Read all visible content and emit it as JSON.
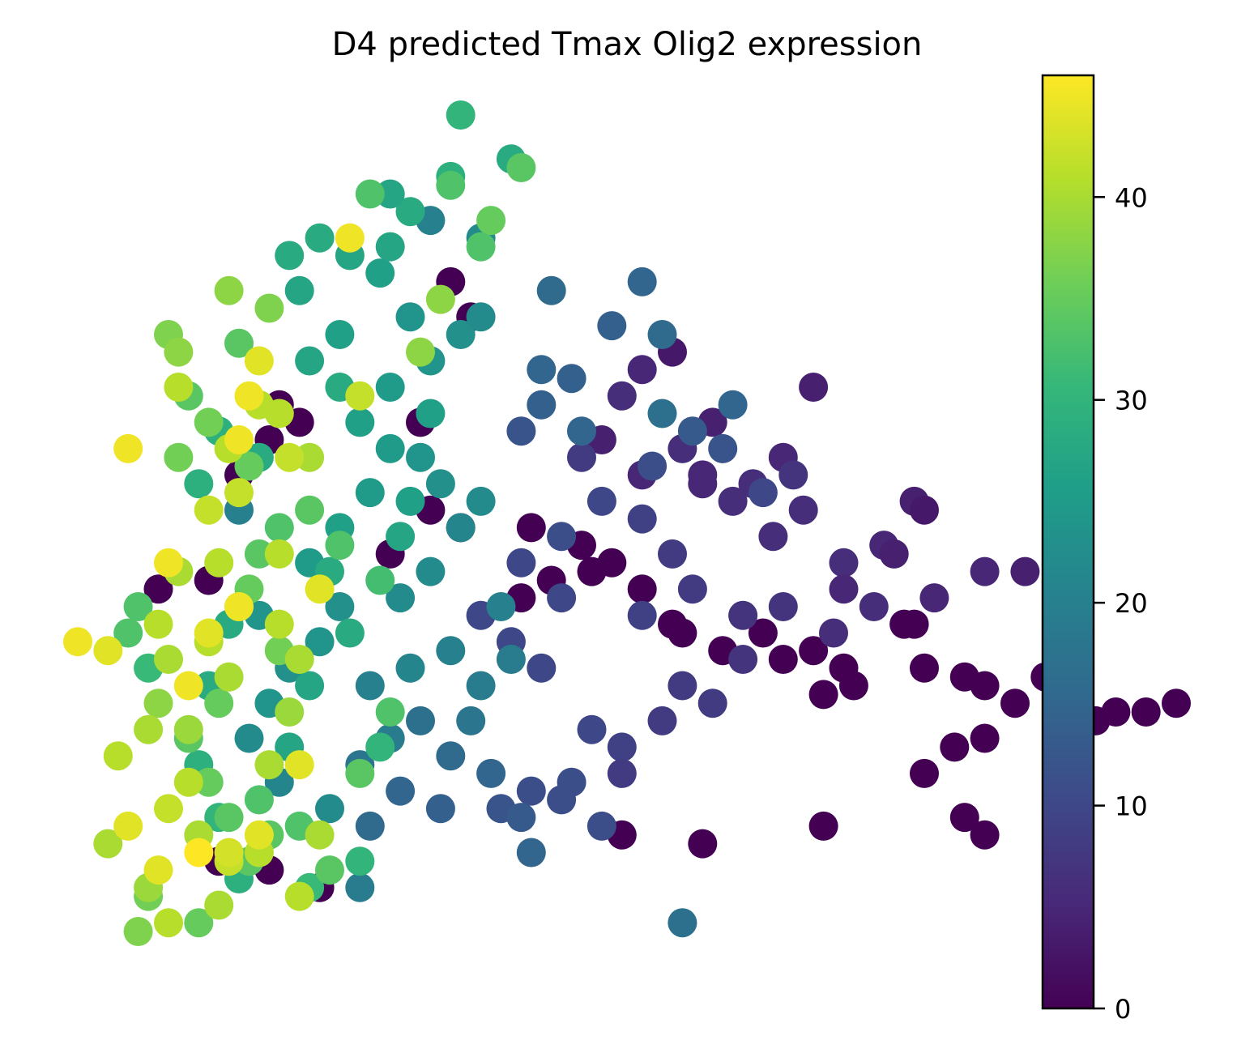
{
  "chart_data": {
    "type": "scatter",
    "title": "D4 predicted Tmax Olig2 expression",
    "xlabel": "",
    "ylabel": "",
    "axes_visible": false,
    "grid": false,
    "point_color": "viridis colormap by expression value",
    "colorbar": {
      "label": "",
      "range": [
        0,
        46
      ],
      "ticks": [
        0,
        10,
        20,
        30,
        40
      ],
      "tick_labels": [
        "0",
        "10",
        "20",
        "30",
        "40"
      ],
      "colormap": "viridis",
      "stops": [
        "#440154",
        "#482878",
        "#3e4989",
        "#31688e",
        "#26828e",
        "#1f9e89",
        "#35b779",
        "#6ece58",
        "#b5de2b",
        "#fde725"
      ]
    },
    "points": [
      [
        0.33,
        8.2,
        0
      ],
      [
        0.35,
        7.8,
        0
      ],
      [
        0.3,
        6.6,
        0
      ],
      [
        0.27,
        5.1,
        0
      ],
      [
        0.16,
        6.8,
        0
      ],
      [
        0.18,
        6.6,
        0
      ],
      [
        0.15,
        6.4,
        0
      ],
      [
        0.12,
        6.0,
        0
      ],
      [
        0.09,
        4.8,
        0
      ],
      [
        0.04,
        4.7,
        0
      ],
      [
        0.43,
        4.8,
        0
      ],
      [
        0.4,
        4.6,
        0
      ],
      [
        0.31,
        5.6,
        0
      ],
      [
        0.34,
        5.4,
        0
      ],
      [
        0.41,
        5.4,
        0
      ],
      [
        0.46,
        5.2,
        0
      ],
      [
        0.49,
        5.0,
        0
      ],
      [
        0.47,
        4.9,
        0
      ],
      [
        0.52,
        4.7,
        0
      ],
      [
        0.55,
        4.3,
        0
      ],
      [
        0.56,
        4.2,
        0
      ],
      [
        0.6,
        4.0,
        0
      ],
      [
        0.64,
        4.2,
        0
      ],
      [
        0.66,
        3.9,
        0
      ],
      [
        0.69,
        4.0,
        0
      ],
      [
        0.7,
        3.5,
        0
      ],
      [
        0.72,
        3.8,
        0
      ],
      [
        0.73,
        3.6,
        0
      ],
      [
        0.78,
        4.3,
        0
      ],
      [
        0.79,
        4.3,
        0
      ],
      [
        0.8,
        3.8,
        0
      ],
      [
        0.84,
        3.7,
        0
      ],
      [
        0.86,
        3.6,
        0
      ],
      [
        0.89,
        3.4,
        0
      ],
      [
        0.92,
        3.7,
        0
      ],
      [
        0.95,
        3.6,
        0
      ],
      [
        0.97,
        3.2,
        0
      ],
      [
        0.99,
        3.3,
        0
      ],
      [
        1.02,
        3.3,
        0
      ],
      [
        1.05,
        3.4,
        0
      ],
      [
        0.86,
        3.0,
        0
      ],
      [
        0.83,
        2.9,
        0
      ],
      [
        0.8,
        2.6,
        0
      ],
      [
        0.84,
        2.1,
        0
      ],
      [
        0.7,
        2.0,
        0
      ],
      [
        0.5,
        1.9,
        0
      ],
      [
        0.58,
        1.8,
        0
      ],
      [
        0.86,
        1.9,
        0
      ],
      [
        0.15,
        1.5,
        0
      ],
      [
        0.2,
        1.3,
        0
      ],
      [
        0.1,
        1.6,
        0
      ],
      [
        0.48,
        6.4,
        4
      ],
      [
        0.55,
        7.4,
        3
      ],
      [
        0.59,
        6.6,
        4
      ],
      [
        0.69,
        7.0,
        4
      ],
      [
        0.58,
        5.9,
        5
      ],
      [
        0.52,
        6.0,
        5
      ],
      [
        0.61,
        5.7,
        6
      ],
      [
        0.65,
        5.3,
        6
      ],
      [
        0.72,
        5.0,
        6
      ],
      [
        0.76,
        5.2,
        5
      ],
      [
        0.68,
        5.6,
        6
      ],
      [
        0.75,
        4.5,
        6
      ],
      [
        0.81,
        4.6,
        5
      ],
      [
        0.86,
        4.9,
        5
      ],
      [
        0.9,
        4.9,
        4
      ],
      [
        0.94,
        4.5,
        4
      ],
      [
        0.62,
        4.4,
        7
      ],
      [
        0.66,
        4.5,
        7
      ],
      [
        0.71,
        4.2,
        6
      ],
      [
        0.62,
        3.9,
        7
      ],
      [
        0.57,
        4.7,
        8
      ],
      [
        0.55,
        5.1,
        8
      ],
      [
        0.52,
        5.5,
        9
      ],
      [
        0.48,
        5.7,
        10
      ],
      [
        0.44,
        5.3,
        11
      ],
      [
        0.44,
        4.6,
        10
      ],
      [
        0.52,
        4.4,
        9
      ],
      [
        0.56,
        3.6,
        8
      ],
      [
        0.59,
        3.4,
        8
      ],
      [
        0.54,
        3.2,
        8
      ],
      [
        0.5,
        2.9,
        9
      ],
      [
        0.47,
        3.1,
        10
      ],
      [
        0.5,
        2.6,
        8
      ],
      [
        0.45,
        2.5,
        11
      ],
      [
        0.41,
        2.4,
        11
      ],
      [
        0.38,
        2.2,
        12
      ],
      [
        0.42,
        3.8,
        10
      ],
      [
        0.39,
        4.1,
        10
      ],
      [
        0.36,
        4.4,
        10
      ],
      [
        0.4,
        5.0,
        10
      ],
      [
        0.46,
        6.2,
        8
      ],
      [
        0.5,
        6.9,
        6
      ],
      [
        0.52,
        7.2,
        5
      ],
      [
        0.56,
        6.3,
        6
      ],
      [
        0.58,
        6.0,
        5
      ],
      [
        0.63,
        5.9,
        6
      ],
      [
        0.66,
        6.2,
        5
      ],
      [
        0.67,
        6.0,
        7
      ],
      [
        0.79,
        5.7,
        4
      ],
      [
        0.8,
        5.6,
        3
      ],
      [
        0.77,
        5.1,
        4
      ],
      [
        0.72,
        4.7,
        5
      ],
      [
        0.64,
        5.8,
        10
      ],
      [
        0.6,
        6.3,
        12
      ],
      [
        0.57,
        6.5,
        13
      ],
      [
        0.61,
        6.8,
        15
      ],
      [
        0.53,
        6.1,
        11
      ],
      [
        0.49,
        7.7,
        14
      ],
      [
        0.52,
        8.2,
        15
      ],
      [
        0.54,
        7.6,
        16
      ],
      [
        0.43,
        8.1,
        16
      ],
      [
        0.42,
        7.2,
        15
      ],
      [
        0.54,
        6.7,
        17
      ],
      [
        0.45,
        7.1,
        14
      ],
      [
        0.4,
        6.5,
        12
      ],
      [
        0.42,
        6.8,
        14
      ],
      [
        0.46,
        6.5,
        15
      ],
      [
        0.56,
        0.9,
        17
      ],
      [
        0.41,
        1.7,
        15
      ],
      [
        0.4,
        2.1,
        13
      ],
      [
        0.44,
        2.3,
        11
      ],
      [
        0.48,
        2.0,
        11
      ],
      [
        0.38,
        4.5,
        20
      ],
      [
        0.39,
        3.9,
        19
      ],
      [
        0.36,
        3.6,
        19
      ],
      [
        0.35,
        3.2,
        18
      ],
      [
        0.33,
        4.0,
        20
      ],
      [
        0.3,
        3.2,
        17
      ],
      [
        0.33,
        2.8,
        16
      ],
      [
        0.37,
        2.6,
        15
      ],
      [
        0.32,
        2.2,
        14
      ],
      [
        0.28,
        2.4,
        15
      ],
      [
        0.25,
        2.0,
        16
      ],
      [
        0.24,
        2.7,
        18
      ],
      [
        0.27,
        3.0,
        19
      ],
      [
        0.25,
        3.6,
        20
      ],
      [
        0.29,
        3.8,
        21
      ],
      [
        0.28,
        4.6,
        22
      ],
      [
        0.31,
        4.9,
        22
      ],
      [
        0.34,
        5.4,
        21
      ],
      [
        0.36,
        5.7,
        22
      ],
      [
        0.32,
        5.9,
        23
      ],
      [
        0.3,
        6.2,
        24
      ],
      [
        0.27,
        6.3,
        25
      ],
      [
        0.24,
        6.6,
        26
      ],
      [
        0.27,
        7.0,
        25
      ],
      [
        0.31,
        7.3,
        24
      ],
      [
        0.34,
        7.6,
        23
      ],
      [
        0.36,
        7.8,
        22
      ],
      [
        0.29,
        7.8,
        24
      ],
      [
        0.26,
        8.3,
        26
      ],
      [
        0.23,
        8.5,
        27
      ],
      [
        0.22,
        7.6,
        26
      ],
      [
        0.19,
        7.3,
        27
      ],
      [
        0.22,
        7.0,
        28
      ],
      [
        0.25,
        5.8,
        25
      ],
      [
        0.22,
        5.4,
        26
      ],
      [
        0.19,
        5.0,
        25
      ],
      [
        0.22,
        4.5,
        23
      ],
      [
        0.2,
        4.1,
        24
      ],
      [
        0.17,
        3.8,
        23
      ],
      [
        0.15,
        3.4,
        24
      ],
      [
        0.13,
        3.0,
        22
      ],
      [
        0.16,
        2.5,
        21
      ],
      [
        0.21,
        2.2,
        22
      ],
      [
        0.24,
        1.3,
        19
      ],
      [
        0.14,
        4.4,
        24
      ],
      [
        0.12,
        5.6,
        20
      ],
      [
        0.31,
        8.9,
        20
      ],
      [
        0.36,
        8.7,
        22
      ],
      [
        0.27,
        8.6,
        27
      ],
      [
        0.29,
        9.0,
        28
      ],
      [
        0.33,
        9.4,
        29
      ],
      [
        0.39,
        9.6,
        28
      ],
      [
        0.34,
        10.1,
        30
      ],
      [
        0.27,
        9.2,
        27
      ],
      [
        0.2,
        8.7,
        28
      ],
      [
        0.17,
        8.5,
        28
      ],
      [
        0.18,
        8.1,
        27
      ],
      [
        0.14,
        6.2,
        28
      ],
      [
        0.1,
        6.5,
        29
      ],
      [
        0.08,
        5.9,
        29
      ],
      [
        0.11,
        4.3,
        28
      ],
      [
        0.09,
        3.6,
        28
      ],
      [
        0.08,
        2.7,
        29
      ],
      [
        0.1,
        2.1,
        30
      ],
      [
        0.12,
        1.4,
        29
      ],
      [
        0.03,
        3.8,
        31
      ],
      [
        0.24,
        1.6,
        30
      ],
      [
        0.19,
        1.3,
        31
      ],
      [
        0.26,
        2.9,
        30
      ],
      [
        0.28,
        5.3,
        27
      ],
      [
        0.29,
        5.7,
        26
      ],
      [
        0.31,
        6.7,
        26
      ],
      [
        0.21,
        4.9,
        28
      ],
      [
        0.23,
        4.2,
        28
      ],
      [
        0.17,
        2.9,
        27
      ],
      [
        0.19,
        3.6,
        27
      ],
      [
        0.36,
        8.6,
        33
      ],
      [
        0.37,
        8.9,
        35
      ],
      [
        0.4,
        9.5,
        34
      ],
      [
        0.33,
        9.3,
        33
      ],
      [
        0.25,
        9.2,
        33
      ],
      [
        0.12,
        7.5,
        34
      ],
      [
        0.07,
        6.9,
        34
      ],
      [
        0.09,
        6.6,
        36
      ],
      [
        0.13,
        6.1,
        35
      ],
      [
        0.14,
        5.1,
        34
      ],
      [
        0.13,
        4.7,
        35
      ],
      [
        0.16,
        4.0,
        36
      ],
      [
        0.1,
        3.4,
        35
      ],
      [
        0.07,
        3.0,
        34
      ],
      [
        0.09,
        2.5,
        35
      ],
      [
        0.11,
        2.1,
        34
      ],
      [
        0.15,
        1.9,
        34
      ],
      [
        0.18,
        2.0,
        33
      ],
      [
        0.21,
        1.5,
        34
      ],
      [
        0.24,
        2.6,
        34
      ],
      [
        0.27,
        3.3,
        33
      ],
      [
        0.26,
        4.8,
        32
      ],
      [
        0.22,
        5.2,
        33
      ],
      [
        0.19,
        5.6,
        34
      ],
      [
        0.16,
        5.4,
        33
      ],
      [
        0.02,
        4.5,
        33
      ],
      [
        0.01,
        4.2,
        33
      ],
      [
        0.14,
        2.3,
        33
      ],
      [
        0.13,
        1.6,
        34
      ],
      [
        0.03,
        1.2,
        36
      ],
      [
        0.08,
        0.9,
        35
      ],
      [
        0.02,
        0.8,
        37
      ],
      [
        0.06,
        6.2,
        36
      ],
      [
        0.32,
        8.0,
        38
      ],
      [
        0.3,
        7.4,
        38
      ],
      [
        0.11,
        8.1,
        38
      ],
      [
        0.15,
        7.9,
        37
      ],
      [
        0.05,
        7.6,
        37
      ],
      [
        0.06,
        7.4,
        38
      ],
      [
        0.04,
        3.4,
        38
      ],
      [
        0.07,
        3.1,
        39
      ],
      [
        0.18,
        3.9,
        40
      ],
      [
        0.17,
        3.3,
        39
      ],
      [
        0.15,
        2.7,
        40
      ],
      [
        0.11,
        3.7,
        40
      ],
      [
        0.09,
        4.1,
        41
      ],
      [
        0.12,
        4.5,
        41
      ],
      [
        0.16,
        5.1,
        41
      ],
      [
        0.12,
        5.8,
        42
      ],
      [
        0.09,
        5.6,
        42
      ],
      [
        0.1,
        5.0,
        41
      ],
      [
        0.06,
        4.9,
        40
      ],
      [
        0.04,
        4.3,
        41
      ],
      [
        0.05,
        3.9,
        40
      ],
      [
        0.03,
        3.1,
        40
      ],
      [
        0.07,
        2.5,
        41
      ],
      [
        0.08,
        1.9,
        40
      ],
      [
        0.11,
        1.6,
        42
      ],
      [
        0.14,
        1.7,
        41
      ],
      [
        0.2,
        1.9,
        40
      ],
      [
        0.18,
        1.2,
        41
      ],
      [
        0.1,
        1.1,
        40
      ],
      [
        0.03,
        1.3,
        39
      ],
      [
        0.0,
        2.8,
        41
      ],
      [
        -0.01,
        1.8,
        40
      ],
      [
        0.24,
        6.9,
        42
      ],
      [
        0.19,
        6.2,
        40
      ],
      [
        0.16,
        6.7,
        41
      ],
      [
        0.14,
        6.8,
        41
      ],
      [
        0.11,
        6.3,
        41
      ],
      [
        0.17,
        6.2,
        42
      ],
      [
        0.06,
        7.0,
        41
      ],
      [
        0.05,
        2.2,
        42
      ],
      [
        0.05,
        0.9,
        41
      ],
      [
        0.16,
        4.3,
        41
      ],
      [
        0.23,
        8.7,
        45
      ],
      [
        0.12,
        6.4,
        45
      ],
      [
        0.01,
        6.3,
        45
      ],
      [
        0.05,
        5.0,
        45
      ],
      [
        0.12,
        4.5,
        45
      ],
      [
        0.2,
        4.7,
        44
      ],
      [
        0.14,
        7.3,
        44
      ],
      [
        0.13,
        6.9,
        45
      ],
      [
        0.07,
        3.6,
        45
      ],
      [
        0.01,
        2.0,
        44
      ],
      [
        0.09,
        4.2,
        44
      ],
      [
        -0.04,
        4.1,
        45
      ],
      [
        -0.01,
        4.0,
        44
      ],
      [
        0.18,
        2.7,
        44
      ],
      [
        0.14,
        1.9,
        44
      ],
      [
        0.11,
        1.7,
        43
      ],
      [
        0.04,
        1.5,
        44
      ],
      [
        0.08,
        1.7,
        46
      ]
    ]
  }
}
